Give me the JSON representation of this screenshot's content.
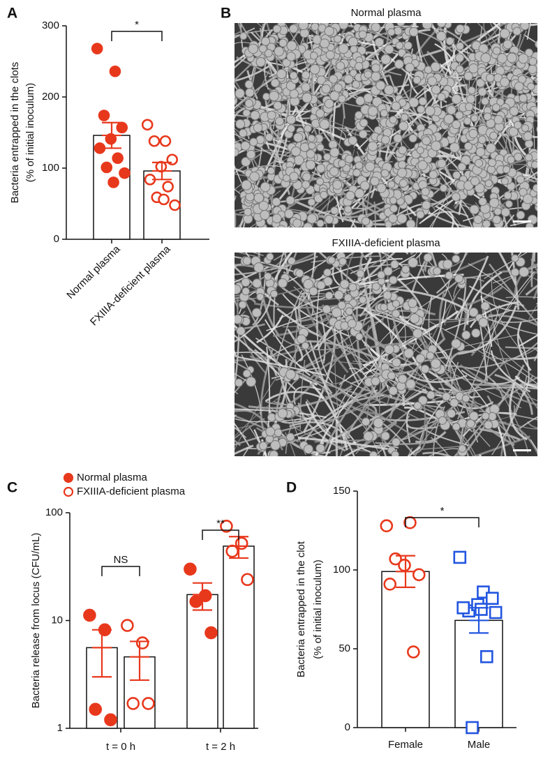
{
  "chart_data": [
    {
      "type": "bar",
      "panel": "A",
      "ylabel": [
        "Bacteria entrapped in the clots",
        "(% of initial inoculum)"
      ],
      "categories": [
        "Normal plasma",
        "FXIIIA-deficient plasma"
      ],
      "values": [
        146,
        96
      ],
      "errors": [
        18,
        12
      ],
      "points": [
        [
          268,
          236,
          174,
          157,
          141,
          128,
          114,
          101,
          93,
          80
        ],
        [
          161,
          138,
          138,
          112,
          102,
          84,
          74,
          59,
          48,
          56
        ]
      ],
      "colors": [
        "#e8381c",
        "#e8381c"
      ],
      "markers": [
        "circle",
        "circle"
      ],
      "fills": [
        "filled",
        "open"
      ],
      "ylim": [
        0,
        300
      ],
      "yticks": [
        0,
        100,
        200,
        300
      ],
      "significance": "*"
    },
    {
      "type": "bar",
      "panel": "C",
      "log": true,
      "ylabel": [
        "Bacteria release from locus (CFU/mL)"
      ],
      "categories": [
        "t = 0 h",
        "t = 2 h"
      ],
      "series": [
        {
          "name": "Normal plasma",
          "color": "#e8381c",
          "marker": "circle",
          "fill": "filled",
          "values": [
            5.6,
            17.4
          ],
          "errors": [
            2.6,
            4.9
          ],
          "points": [
            [
              11.2,
              8.2,
              1.5,
              1.2
            ],
            [
              30,
              17,
              15,
              7.7
            ]
          ]
        },
        {
          "name": "FXIIIA-deficient plasma",
          "color": "#e8381c",
          "marker": "circle",
          "fill": "open",
          "values": [
            4.6,
            49
          ],
          "errors": [
            1.8,
            11
          ],
          "points": [
            [
              9.0,
              6.2,
              1.7,
              1.7
            ],
            [
              75,
              52,
              44,
              24
            ]
          ]
        }
      ],
      "ylim": [
        1,
        100
      ],
      "yticks": [
        1,
        10,
        100
      ],
      "significance": [
        "NS",
        "**"
      ]
    },
    {
      "type": "bar",
      "panel": "D",
      "ylabel": [
        "Bacteria entrapped in the clot",
        "(% of initial inoculum)"
      ],
      "categories": [
        "Female",
        "Male"
      ],
      "values": [
        99,
        68
      ],
      "errors": [
        10,
        8
      ],
      "points": [
        [
          128,
          130,
          107,
          97,
          103,
          91,
          48
        ],
        [
          108,
          86,
          74,
          82,
          78,
          76,
          45,
          0,
          73,
          75
        ]
      ],
      "colors": [
        "#e8381c",
        "#2255e0"
      ],
      "markers": [
        "circle",
        "square"
      ],
      "fills": [
        "open",
        "open"
      ],
      "ylim": [
        0,
        150
      ],
      "yticks": [
        0,
        50,
        100,
        150
      ],
      "significance": "*"
    }
  ],
  "micrographs": {
    "panel": "B",
    "titles": [
      "Normal plasma",
      "FXIIIA-deficient plasma"
    ]
  }
}
